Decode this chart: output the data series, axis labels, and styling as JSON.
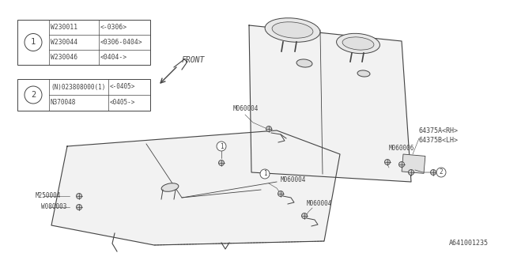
{
  "bg_color": "#ffffff",
  "line_color": "#444444",
  "title_bottom": "A641001235",
  "parts_table1": {
    "rows": [
      [
        "W230011",
        "<-0306>"
      ],
      [
        "W230044",
        "<0306-0404>"
      ],
      [
        "W230046",
        "<0404->"
      ]
    ]
  },
  "parts_table2": {
    "rows": [
      [
        "(N)023808000(1)",
        "<-0405>"
      ],
      [
        "N370048",
        "<0405->"
      ]
    ]
  },
  "front_label": "FRONT",
  "label_64375A": "64375A<RH>",
  "label_64375B": "64375B<LH>",
  "label_M060004": "M060004",
  "label_M060006": "M060006",
  "label_M250004": "M250004",
  "label_W080003": "W080003"
}
